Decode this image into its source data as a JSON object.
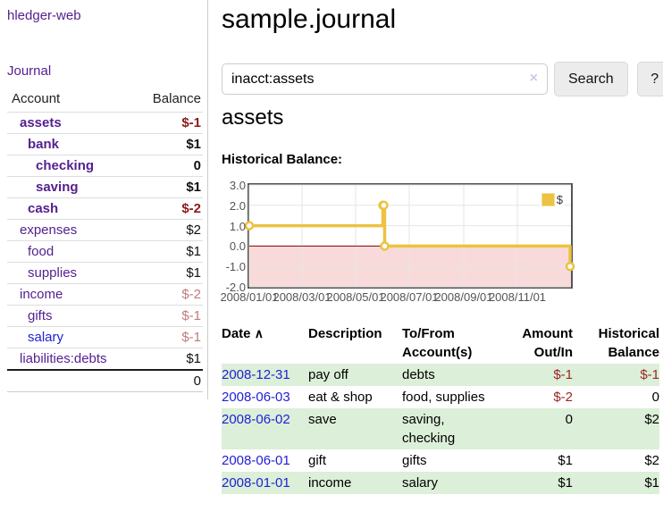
{
  "app": {
    "title": "hledger-web"
  },
  "sidebar": {
    "journal_link": "Journal",
    "table": {
      "account_header": "Account",
      "balance_header": "Balance",
      "rows": [
        {
          "account": "assets",
          "balance": "$-1",
          "level": 1,
          "bold": true,
          "amount_class": "neg-strong",
          "link": "purple"
        },
        {
          "account": "bank",
          "balance": "$1",
          "level": 2,
          "bold": true,
          "amount_class": "pos",
          "link": "purple"
        },
        {
          "account": "checking",
          "balance": "0",
          "level": 3,
          "bold": true,
          "amount_class": "pos",
          "link": "purple"
        },
        {
          "account": "saving",
          "balance": "$1",
          "level": 3,
          "bold": true,
          "amount_class": "pos",
          "link": "purple"
        },
        {
          "account": "cash",
          "balance": "$-2",
          "level": 2,
          "bold": true,
          "amount_class": "neg-strong",
          "link": "purple"
        },
        {
          "account": "expenses",
          "balance": "$2",
          "level": 1,
          "bold": false,
          "amount_class": "pos",
          "link": "purple"
        },
        {
          "account": "food",
          "balance": "$1",
          "level": 2,
          "bold": false,
          "amount_class": "pos",
          "link": "purple"
        },
        {
          "account": "supplies",
          "balance": "$1",
          "level": 2,
          "bold": false,
          "amount_class": "pos",
          "link": "purple"
        },
        {
          "account": "income",
          "balance": "$-2",
          "level": 1,
          "bold": false,
          "amount_class": "neg-soft",
          "link": "purple"
        },
        {
          "account": "gifts",
          "balance": "$-1",
          "level": 2,
          "bold": false,
          "amount_class": "neg-soft",
          "link": "purple"
        },
        {
          "account": "salary",
          "balance": "$-1",
          "level": 2,
          "bold": false,
          "amount_class": "neg-soft",
          "link": "blue"
        },
        {
          "account": "liabilities:debts",
          "balance": "$1",
          "level": 1,
          "bold": false,
          "amount_class": "pos",
          "link": "purple"
        }
      ],
      "total": "0"
    }
  },
  "header": {
    "title": "sample.journal"
  },
  "search": {
    "value": "inacct:assets",
    "clear_icon": "×",
    "button_label": "Search",
    "help_label": "?"
  },
  "account_page": {
    "title": "assets",
    "chart_label": "Historical Balance:"
  },
  "chart_data": {
    "type": "line",
    "title": "Historical Balance",
    "step": true,
    "series": [
      {
        "name": "$",
        "color": "#edc240",
        "points": [
          [
            "2008-01-01",
            1
          ],
          [
            "2008-06-01",
            2
          ],
          [
            "2008-06-02",
            2
          ],
          [
            "2008-06-03",
            0
          ],
          [
            "2008-12-31",
            -1
          ]
        ]
      }
    ],
    "x_range": [
      "2008-01-01",
      "2009-01-01"
    ],
    "xticks": [
      "2008/01/01",
      "2008/03/01",
      "2008/05/01",
      "2008/07/01",
      "2008/09/01",
      "2008/11/01"
    ],
    "yticks": [
      3.0,
      2.0,
      1.0,
      0.0,
      -1.0,
      -2.0
    ],
    "ylim": [
      -2,
      3
    ],
    "grid": true,
    "grid_color": "#e6e6e6",
    "negative_region_color": "#f9dada",
    "zero_line_color": "#8b0000",
    "legend": {
      "label": "$",
      "position": "top-right"
    }
  },
  "register": {
    "columns": [
      "Date",
      "Description",
      "To/From Account(s)",
      "Amount Out/In",
      "Historical Balance"
    ],
    "sort_icon": "∧",
    "rows": [
      {
        "date": "2008-12-31",
        "description": "pay off",
        "tofrom": "debts",
        "amount": "$-1",
        "amount_neg": true,
        "balance": "$-1",
        "balance_neg": true
      },
      {
        "date": "2008-06-03",
        "description": "eat & shop",
        "tofrom": "food, supplies",
        "amount": "$-2",
        "amount_neg": true,
        "balance": "0",
        "balance_neg": false
      },
      {
        "date": "2008-06-02",
        "description": "save",
        "tofrom": "saving, checking",
        "amount": "0",
        "amount_neg": false,
        "balance": "$2",
        "balance_neg": false
      },
      {
        "date": "2008-06-01",
        "description": "gift",
        "tofrom": "gifts",
        "amount": "$1",
        "amount_neg": false,
        "balance": "$2",
        "balance_neg": false
      },
      {
        "date": "2008-01-01",
        "description": "income",
        "tofrom": "salary",
        "amount": "$1",
        "amount_neg": false,
        "balance": "$1",
        "balance_neg": false
      }
    ]
  }
}
